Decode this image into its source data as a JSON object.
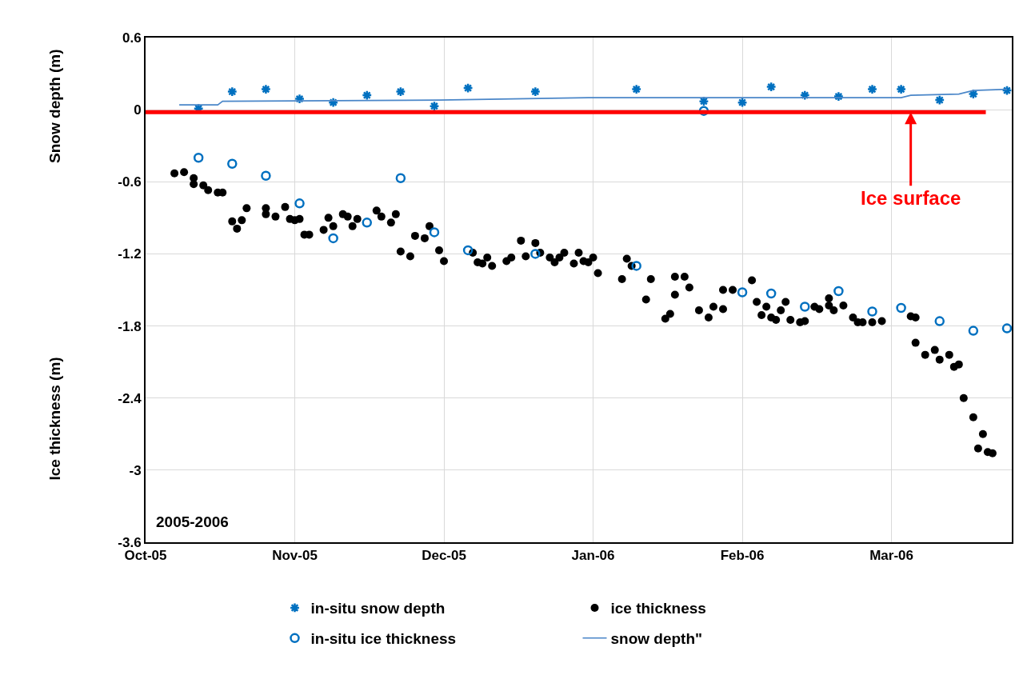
{
  "chart_data": {
    "type": "scatter",
    "ylabel": "Snow depth (m)",
    "annotations": [
      "2005-2006",
      "Ice thickness (m)",
      {
        "text": "Ice surface",
        "x": "2006-03-09",
        "y": -0.02
      }
    ],
    "xlim": [
      "2005-10-01",
      "2006-03-30"
    ],
    "xticks": [
      {
        "value": "2005-10-01",
        "label": "Oct-05"
      },
      {
        "value": "2005-11-01",
        "label": "Nov-05"
      },
      {
        "value": "2005-12-02",
        "label": "Dec-05"
      },
      {
        "value": "2006-01-02",
        "label": "Jan-06"
      },
      {
        "value": "2006-02-02",
        "label": "Feb-06"
      },
      {
        "value": "2006-03-05",
        "label": "Mar-06"
      }
    ],
    "ylim": [
      -3.6,
      0.6
    ],
    "yticks": [
      0.6,
      0,
      -0.6,
      -1.2,
      -1.8,
      -2.4,
      -3,
      -3.6
    ],
    "grid": true,
    "legend": "bottom",
    "ref_lines": [
      {
        "axis": "y",
        "value": -0.02,
        "color": "#ff0000"
      }
    ],
    "series": [
      {
        "name": "in-situ snow depth",
        "color": "#0070c0",
        "marker": "cross",
        "x": [
          "2005-10-12",
          "2005-10-19",
          "2005-10-26",
          "2005-11-02",
          "2005-11-09",
          "2005-11-16",
          "2005-11-23",
          "2005-11-30",
          "2005-12-07",
          "2005-12-21",
          "2006-01-11",
          "2006-01-25",
          "2006-02-02",
          "2006-02-08",
          "2006-02-15",
          "2006-02-22",
          "2006-03-01",
          "2006-03-07",
          "2006-03-15",
          "2006-03-22",
          "2006-03-29"
        ],
        "values": [
          0.01,
          0.15,
          0.17,
          0.09,
          0.06,
          0.12,
          0.15,
          0.03,
          0.18,
          0.15,
          0.17,
          0.07,
          0.06,
          0.19,
          0.12,
          0.11,
          0.17,
          0.17,
          0.08,
          0.13,
          0.16
        ]
      },
      {
        "name": "ice thickness",
        "color": "#000000",
        "marker": "circle",
        "x": [
          "2005-10-07",
          "2005-10-09",
          "2005-10-11",
          "2005-10-11",
          "2005-10-13",
          "2005-10-14",
          "2005-10-16",
          "2005-10-17",
          "2005-10-19",
          "2005-10-20",
          "2005-10-21",
          "2005-10-22",
          "2005-10-26",
          "2005-10-26",
          "2005-10-28",
          "2005-10-30",
          "2005-10-31",
          "2005-11-01",
          "2005-11-02",
          "2005-11-03",
          "2005-11-04",
          "2005-11-07",
          "2005-11-08",
          "2005-11-09",
          "2005-11-11",
          "2005-11-12",
          "2005-11-13",
          "2005-11-14",
          "2005-11-18",
          "2005-11-19",
          "2005-11-21",
          "2005-11-22",
          "2005-11-23",
          "2005-11-25",
          "2005-11-26",
          "2005-11-28",
          "2005-11-29",
          "2005-12-01",
          "2005-12-02",
          "2005-12-08",
          "2005-12-09",
          "2005-12-10",
          "2005-12-11",
          "2005-12-12",
          "2005-12-15",
          "2005-12-16",
          "2005-12-18",
          "2005-12-19",
          "2005-12-21",
          "2005-12-22",
          "2005-12-24",
          "2005-12-25",
          "2005-12-26",
          "2005-12-27",
          "2005-12-29",
          "2005-12-30",
          "2005-12-31",
          "2006-01-01",
          "2006-01-02",
          "2006-01-03",
          "2006-01-08",
          "2006-01-09",
          "2006-01-10",
          "2006-01-13",
          "2006-01-14",
          "2006-01-17",
          "2006-01-18",
          "2006-01-19",
          "2006-01-19",
          "2006-01-21",
          "2006-01-22",
          "2006-01-24",
          "2006-01-26",
          "2006-01-27",
          "2006-01-29",
          "2006-01-29",
          "2006-01-31",
          "2006-02-04",
          "2006-02-05",
          "2006-02-06",
          "2006-02-07",
          "2006-02-08",
          "2006-02-09",
          "2006-02-10",
          "2006-02-11",
          "2006-02-12",
          "2006-02-14",
          "2006-02-15",
          "2006-02-17",
          "2006-02-18",
          "2006-02-20",
          "2006-02-20",
          "2006-02-21",
          "2006-02-23",
          "2006-02-25",
          "2006-02-26",
          "2006-02-27",
          "2006-03-01",
          "2006-03-03",
          "2006-03-09",
          "2006-03-10",
          "2006-03-10",
          "2006-03-12",
          "2006-03-14",
          "2006-03-15",
          "2006-03-17",
          "2006-03-18",
          "2006-03-19",
          "2006-03-20",
          "2006-03-22",
          "2006-03-23",
          "2006-03-24",
          "2006-03-25",
          "2006-03-26"
        ],
        "values": [
          -0.53,
          -0.52,
          -0.57,
          -0.62,
          -0.63,
          -0.67,
          -0.69,
          -0.69,
          -0.93,
          -0.99,
          -0.92,
          -0.82,
          -0.82,
          -0.87,
          -0.89,
          -0.81,
          -0.91,
          -0.92,
          -0.91,
          -1.04,
          -1.04,
          -1.0,
          -0.9,
          -0.97,
          -0.87,
          -0.89,
          -0.97,
          -0.91,
          -0.84,
          -0.89,
          -0.94,
          -0.87,
          -1.18,
          -1.22,
          -1.05,
          -1.07,
          -0.97,
          -1.17,
          -1.26,
          -1.19,
          -1.27,
          -1.28,
          -1.23,
          -1.3,
          -1.26,
          -1.23,
          -1.09,
          -1.22,
          -1.11,
          -1.19,
          -1.23,
          -1.27,
          -1.23,
          -1.19,
          -1.28,
          -1.19,
          -1.26,
          -1.27,
          -1.23,
          -1.36,
          -1.41,
          -1.24,
          -1.3,
          -1.58,
          -1.41,
          -1.74,
          -1.7,
          -1.54,
          -1.39,
          -1.39,
          -1.48,
          -1.67,
          -1.73,
          -1.64,
          -1.66,
          -1.5,
          -1.5,
          -1.42,
          -1.6,
          -1.71,
          -1.64,
          -1.73,
          -1.75,
          -1.67,
          -1.6,
          -1.75,
          -1.77,
          -1.76,
          -1.64,
          -1.66,
          -1.57,
          -1.63,
          -1.67,
          -1.63,
          -1.73,
          -1.77,
          -1.77,
          -1.77,
          -1.76,
          -1.72,
          -1.73,
          -1.94,
          -2.04,
          -2.0,
          -2.08,
          -2.04,
          -2.14,
          -2.12,
          -2.4,
          -2.56,
          -2.82,
          -2.7,
          -2.85,
          -2.86
        ]
      },
      {
        "name": "in-situ ice thickness",
        "color": "#0070c0",
        "marker": "circle-open",
        "x": [
          "2005-10-12",
          "2005-10-19",
          "2005-10-26",
          "2005-11-02",
          "2005-11-09",
          "2005-11-16",
          "2005-11-23",
          "2005-11-30",
          "2005-12-07",
          "2005-12-21",
          "2006-01-11",
          "2006-01-25",
          "2006-02-02",
          "2006-02-08",
          "2006-02-15",
          "2006-02-22",
          "2006-03-01",
          "2006-03-07",
          "2006-03-15",
          "2006-03-22",
          "2006-03-29"
        ],
        "values": [
          -0.4,
          -0.45,
          -0.55,
          -0.78,
          -1.07,
          -0.94,
          -0.57,
          -1.02,
          -1.17,
          -1.2,
          -1.3,
          -0.01,
          -1.52,
          -1.53,
          -1.64,
          -1.51,
          -1.68,
          -1.65,
          -1.76,
          -1.84,
          -1.82
        ]
      },
      {
        "name": "snow depth\"",
        "type": "line",
        "color": "#4a86c8",
        "marker": "none",
        "line_style": "solid",
        "x": [
          "2005-10-08",
          "2005-10-16",
          "2005-10-17",
          "2005-12-01",
          "2006-01-01",
          "2006-02-01",
          "2006-03-07",
          "2006-03-09",
          "2006-03-19",
          "2006-03-22",
          "2006-03-29"
        ],
        "values": [
          0.04,
          0.04,
          0.07,
          0.08,
          0.1,
          0.1,
          0.1,
          0.12,
          0.13,
          0.16,
          0.17
        ]
      }
    ]
  }
}
